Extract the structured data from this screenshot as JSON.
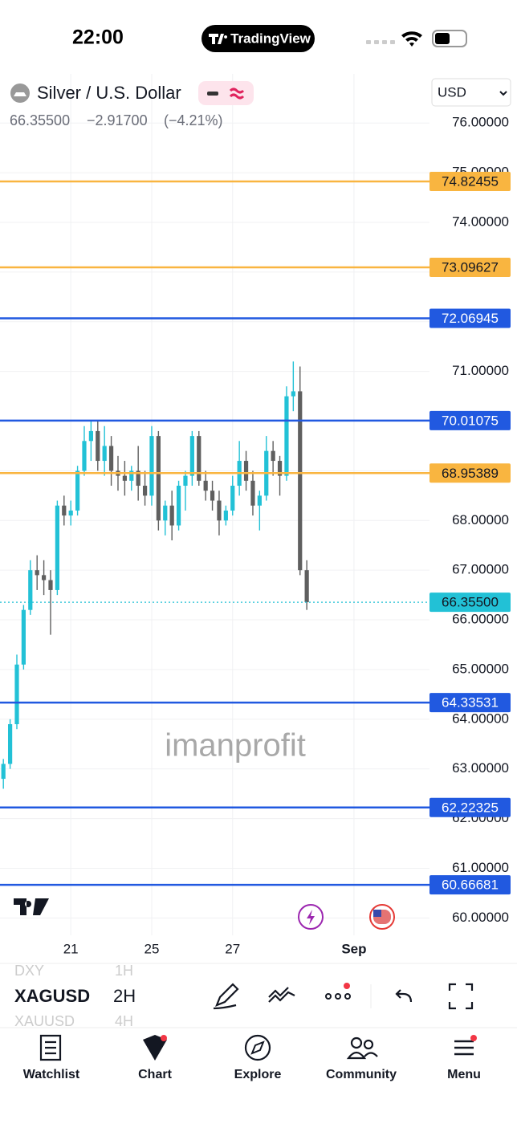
{
  "status": {
    "time": "22:00",
    "app": "TradingView"
  },
  "header": {
    "symbol_name": "Silver / U.S. Dollar",
    "price": "66.35500",
    "change": "−2.91700",
    "change_pct": "(−4.21%)",
    "currency": "USD"
  },
  "watermark": "imanprofit",
  "chart_data": {
    "type": "candlestick",
    "open": [
      62.8,
      63.1,
      63.9,
      65.1,
      66.2,
      67.0,
      66.9,
      66.8,
      66.6,
      68.3,
      68.1,
      68.2,
      69.0,
      69.6,
      69.8,
      69.2,
      69.5,
      69.0,
      68.9,
      68.8,
      69.0,
      68.7,
      68.5,
      69.7,
      68.0,
      68.3,
      67.9,
      68.7,
      68.9,
      69.7,
      68.8,
      68.6,
      68.4,
      68.0,
      68.2,
      68.7,
      69.2,
      68.8,
      68.3,
      68.5,
      69.4,
      69.2,
      68.9,
      70.5,
      70.6,
      67.0
    ],
    "high": [
      63.2,
      64.0,
      65.3,
      66.3,
      67.2,
      67.3,
      67.2,
      67.0,
      68.4,
      68.5,
      68.4,
      69.1,
      69.9,
      70.0,
      70.0,
      69.9,
      69.7,
      69.3,
      69.2,
      69.1,
      69.5,
      69.0,
      69.9,
      69.8,
      68.4,
      68.6,
      68.8,
      69.0,
      69.8,
      69.8,
      69.0,
      68.8,
      68.6,
      68.3,
      68.9,
      69.6,
      69.4,
      69.0,
      68.6,
      69.7,
      69.6,
      69.3,
      70.7,
      71.2,
      71.1,
      67.2
    ],
    "low": [
      62.6,
      63.0,
      63.8,
      65.0,
      66.1,
      66.6,
      66.5,
      65.7,
      66.5,
      67.9,
      67.9,
      68.1,
      68.9,
      69.2,
      69.0,
      68.9,
      68.7,
      68.6,
      68.5,
      68.6,
      68.4,
      68.3,
      68.3,
      67.8,
      67.7,
      67.6,
      67.8,
      68.2,
      68.7,
      68.7,
      68.4,
      68.2,
      67.7,
      67.9,
      68.1,
      68.5,
      68.6,
      68.1,
      67.8,
      68.4,
      68.9,
      68.5,
      68.8,
      70.2,
      66.9,
      66.2
    ],
    "close": [
      63.1,
      63.9,
      65.1,
      66.2,
      67.0,
      66.9,
      66.8,
      66.6,
      68.3,
      68.1,
      68.2,
      69.0,
      69.6,
      69.8,
      69.2,
      69.5,
      69.0,
      68.9,
      68.8,
      69.0,
      68.7,
      68.5,
      69.7,
      68.0,
      68.3,
      67.9,
      68.7,
      68.9,
      69.7,
      68.8,
      68.6,
      68.4,
      68.0,
      68.2,
      68.7,
      69.2,
      68.8,
      68.3,
      68.5,
      69.4,
      69.2,
      68.9,
      70.5,
      70.6,
      67.0,
      66.355
    ],
    "up_color": "#22c1d6",
    "down_color": "#5f5f5f",
    "xlim": [
      -0.5,
      63.2
    ],
    "xticks": [
      {
        "value": 10,
        "label": "21"
      },
      {
        "value": 22,
        "label": "25"
      },
      {
        "value": 34,
        "label": "27"
      },
      {
        "value": 52,
        "label": "Sep"
      }
    ],
    "ylim": [
      59.65,
      76.99
    ],
    "yticks": [
      {
        "value": 60,
        "label": "60.00000"
      },
      {
        "value": 61,
        "label": "61.00000"
      },
      {
        "value": 62,
        "label": "62.00000"
      },
      {
        "value": 63,
        "label": "63.00000"
      },
      {
        "value": 64,
        "label": "64.00000"
      },
      {
        "value": 65,
        "label": "65.00000"
      },
      {
        "value": 66,
        "label": "66.00000"
      },
      {
        "value": 67,
        "label": "67.00000"
      },
      {
        "value": 68,
        "label": "68.00000"
      },
      {
        "value": 69,
        "label": "69.00000"
      },
      {
        "value": 70,
        "label": "70.00000"
      },
      {
        "value": 71,
        "label": "71.00000"
      },
      {
        "value": 72,
        "label": "72.00000"
      },
      {
        "value": 73,
        "label": "73.00000"
      },
      {
        "value": 74,
        "label": "74.00000"
      },
      {
        "value": 75,
        "label": "75.00000"
      },
      {
        "value": 76,
        "label": "76.00000"
      }
    ],
    "grid": true,
    "levels": [
      {
        "value": 74.82455,
        "color": "#f9b540"
      },
      {
        "value": 73.09627,
        "color": "#f9b540"
      },
      {
        "value": 72.06945,
        "color": "#2159e0"
      },
      {
        "value": 70.01075,
        "color": "#2159e0"
      },
      {
        "value": 68.95389,
        "color": "#f9b540"
      },
      {
        "value": 64.33531,
        "color": "#2159e0"
      },
      {
        "value": 62.22325,
        "color": "#2159e0"
      },
      {
        "value": 60.66681,
        "color": "#2159e0"
      }
    ],
    "last_price": {
      "value": 66.355,
      "label": "66.35500",
      "color": "#22c1d6"
    }
  },
  "toolbar": {
    "symbols": [
      "DXY",
      "XAGUSD",
      "XAUUSD"
    ],
    "intervals": [
      "1H",
      "2H",
      "4H"
    ]
  },
  "nav": [
    "Watchlist",
    "Chart",
    "Explore",
    "Community",
    "Menu"
  ]
}
